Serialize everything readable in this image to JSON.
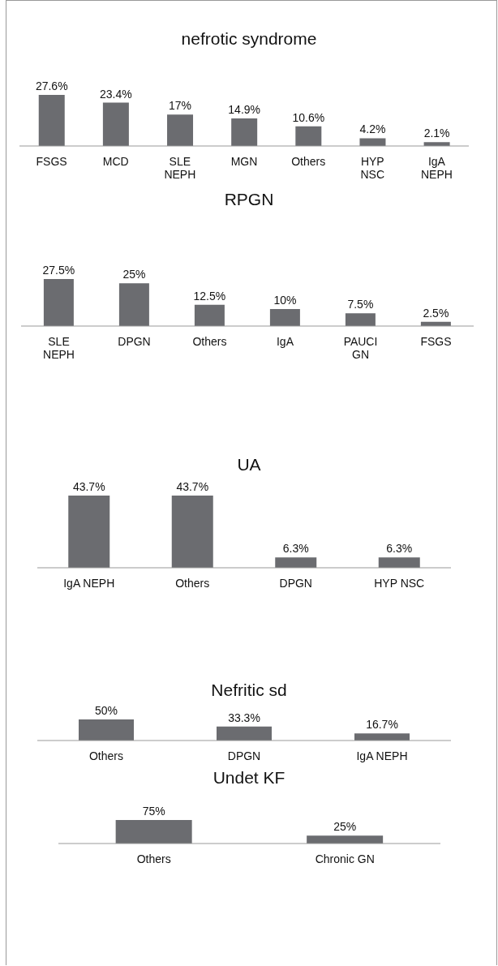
{
  "chart_data": [
    {
      "type": "bar",
      "title": "nefrotic syndrome",
      "categories": [
        "FSGS",
        "MCD",
        "SLE NEPH",
        "MGN",
        "Others",
        "HYP NSC",
        "IgA NEPH"
      ],
      "values": [
        27.6,
        23.4,
        17,
        14.9,
        10.6,
        4.2,
        2.1
      ],
      "value_labels": [
        "27.6%",
        "23.4%",
        "17%",
        "14.9%",
        "10.6%",
        "4.2%",
        "2.1%"
      ],
      "color": "#6b6c70"
    },
    {
      "type": "bar",
      "title": "RPGN",
      "categories": [
        "SLE NEPH",
        "DPGN",
        "Others",
        "IgA",
        "PAUCI GN",
        "FSGS"
      ],
      "values": [
        27.5,
        25,
        12.5,
        10,
        7.5,
        2.5
      ],
      "value_labels": [
        "27.5%",
        "25%",
        "12.5%",
        "10%",
        "7.5%",
        "2.5%"
      ],
      "color": "#6b6c70"
    },
    {
      "type": "bar",
      "title": "UA",
      "categories": [
        "IgA NEPH",
        "Others",
        "DPGN",
        "HYP NSC"
      ],
      "values": [
        43.7,
        43.7,
        6.3,
        6.3
      ],
      "value_labels": [
        "43.7%",
        "43.7%",
        "6.3%",
        "6.3%"
      ],
      "color": "#6b6c70"
    },
    {
      "type": "bar",
      "title": "Nefritic sd",
      "categories": [
        "Others",
        "DPGN",
        "IgA NEPH"
      ],
      "values": [
        50,
        33.3,
        16.7
      ],
      "value_labels": [
        "50%",
        "33.3%",
        "16.7%"
      ],
      "color": "#6b6c70"
    },
    {
      "type": "bar",
      "title": "Undet KF",
      "categories": [
        "Others",
        "Chronic GN"
      ],
      "values": [
        75,
        25
      ],
      "value_labels": [
        "75%",
        "25%"
      ],
      "color": "#6b6c70"
    }
  ]
}
